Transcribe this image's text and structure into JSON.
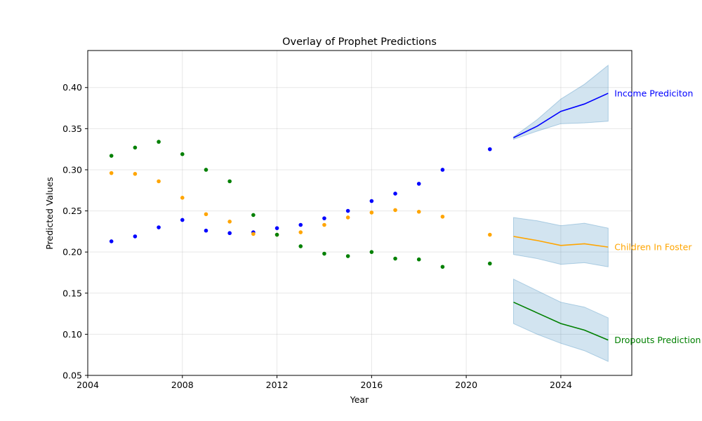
{
  "chart_data": {
    "type": "line",
    "title": "Overlay of Prophet Predictions",
    "xlabel": "Year",
    "ylabel": "Predicted Values",
    "xlim": [
      2004,
      2027
    ],
    "ylim": [
      0.05,
      0.445
    ],
    "xticks": [
      2004,
      2008,
      2012,
      2016,
      2020,
      2024
    ],
    "xtick_labels": [
      "2004",
      "2008",
      "2012",
      "2016",
      "2020",
      "2024"
    ],
    "yticks": [
      0.05,
      0.1,
      0.15,
      0.2,
      0.25,
      0.3,
      0.35,
      0.4
    ],
    "ytick_labels": [
      "0.05",
      "0.10",
      "0.15",
      "0.20",
      "0.25",
      "0.30",
      "0.35",
      "0.40"
    ],
    "grid": true,
    "series": [
      {
        "name": "Income Prediciton",
        "color": "#0000ff",
        "observed_x": [
          2005,
          2006,
          2007,
          2008,
          2009,
          2010,
          2011,
          2012,
          2013,
          2014,
          2015,
          2016,
          2017,
          2018,
          2019,
          2021
        ],
        "observed_y": [
          0.213,
          0.219,
          0.23,
          0.239,
          0.226,
          0.223,
          0.224,
          0.229,
          0.233,
          0.241,
          0.25,
          0.262,
          0.271,
          0.283,
          0.3,
          0.325
        ],
        "forecast_x": [
          2022,
          2023,
          2024,
          2025,
          2026
        ],
        "forecast_y": [
          0.339,
          0.353,
          0.371,
          0.38,
          0.393
        ],
        "lower": [
          0.337,
          0.347,
          0.356,
          0.357,
          0.359
        ],
        "upper": [
          0.34,
          0.361,
          0.386,
          0.404,
          0.427
        ]
      },
      {
        "name": "Children In Foster",
        "color": "#ffa500",
        "observed_x": [
          2005,
          2006,
          2007,
          2008,
          2009,
          2010,
          2011,
          2012,
          2013,
          2014,
          2015,
          2016,
          2017,
          2018,
          2019,
          2021
        ],
        "observed_y": [
          0.296,
          0.295,
          0.286,
          0.266,
          0.246,
          0.237,
          0.222,
          0.221,
          0.224,
          0.233,
          0.242,
          0.248,
          0.251,
          0.249,
          0.243,
          0.221
        ],
        "forecast_x": [
          2022,
          2023,
          2024,
          2025,
          2026
        ],
        "forecast_y": [
          0.219,
          0.214,
          0.208,
          0.21,
          0.206
        ],
        "lower": [
          0.197,
          0.192,
          0.185,
          0.187,
          0.182
        ],
        "upper": [
          0.242,
          0.238,
          0.232,
          0.235,
          0.229
        ]
      },
      {
        "name": "Dropouts Prediction",
        "color": "#008000",
        "observed_x": [
          2005,
          2006,
          2007,
          2008,
          2009,
          2010,
          2011,
          2012,
          2013,
          2014,
          2015,
          2016,
          2017,
          2018,
          2019,
          2021
        ],
        "observed_y": [
          0.317,
          0.327,
          0.334,
          0.319,
          0.3,
          0.286,
          0.245,
          0.221,
          0.207,
          0.198,
          0.195,
          0.2,
          0.192,
          0.191,
          0.182,
          0.186
        ],
        "forecast_x": [
          2022,
          2023,
          2024,
          2025,
          2026
        ],
        "forecast_y": [
          0.139,
          0.126,
          0.113,
          0.105,
          0.093
        ],
        "lower": [
          0.113,
          0.1,
          0.089,
          0.08,
          0.067
        ],
        "upper": [
          0.167,
          0.153,
          0.139,
          0.133,
          0.12
        ]
      }
    ],
    "band_color": "#1f77b4"
  }
}
